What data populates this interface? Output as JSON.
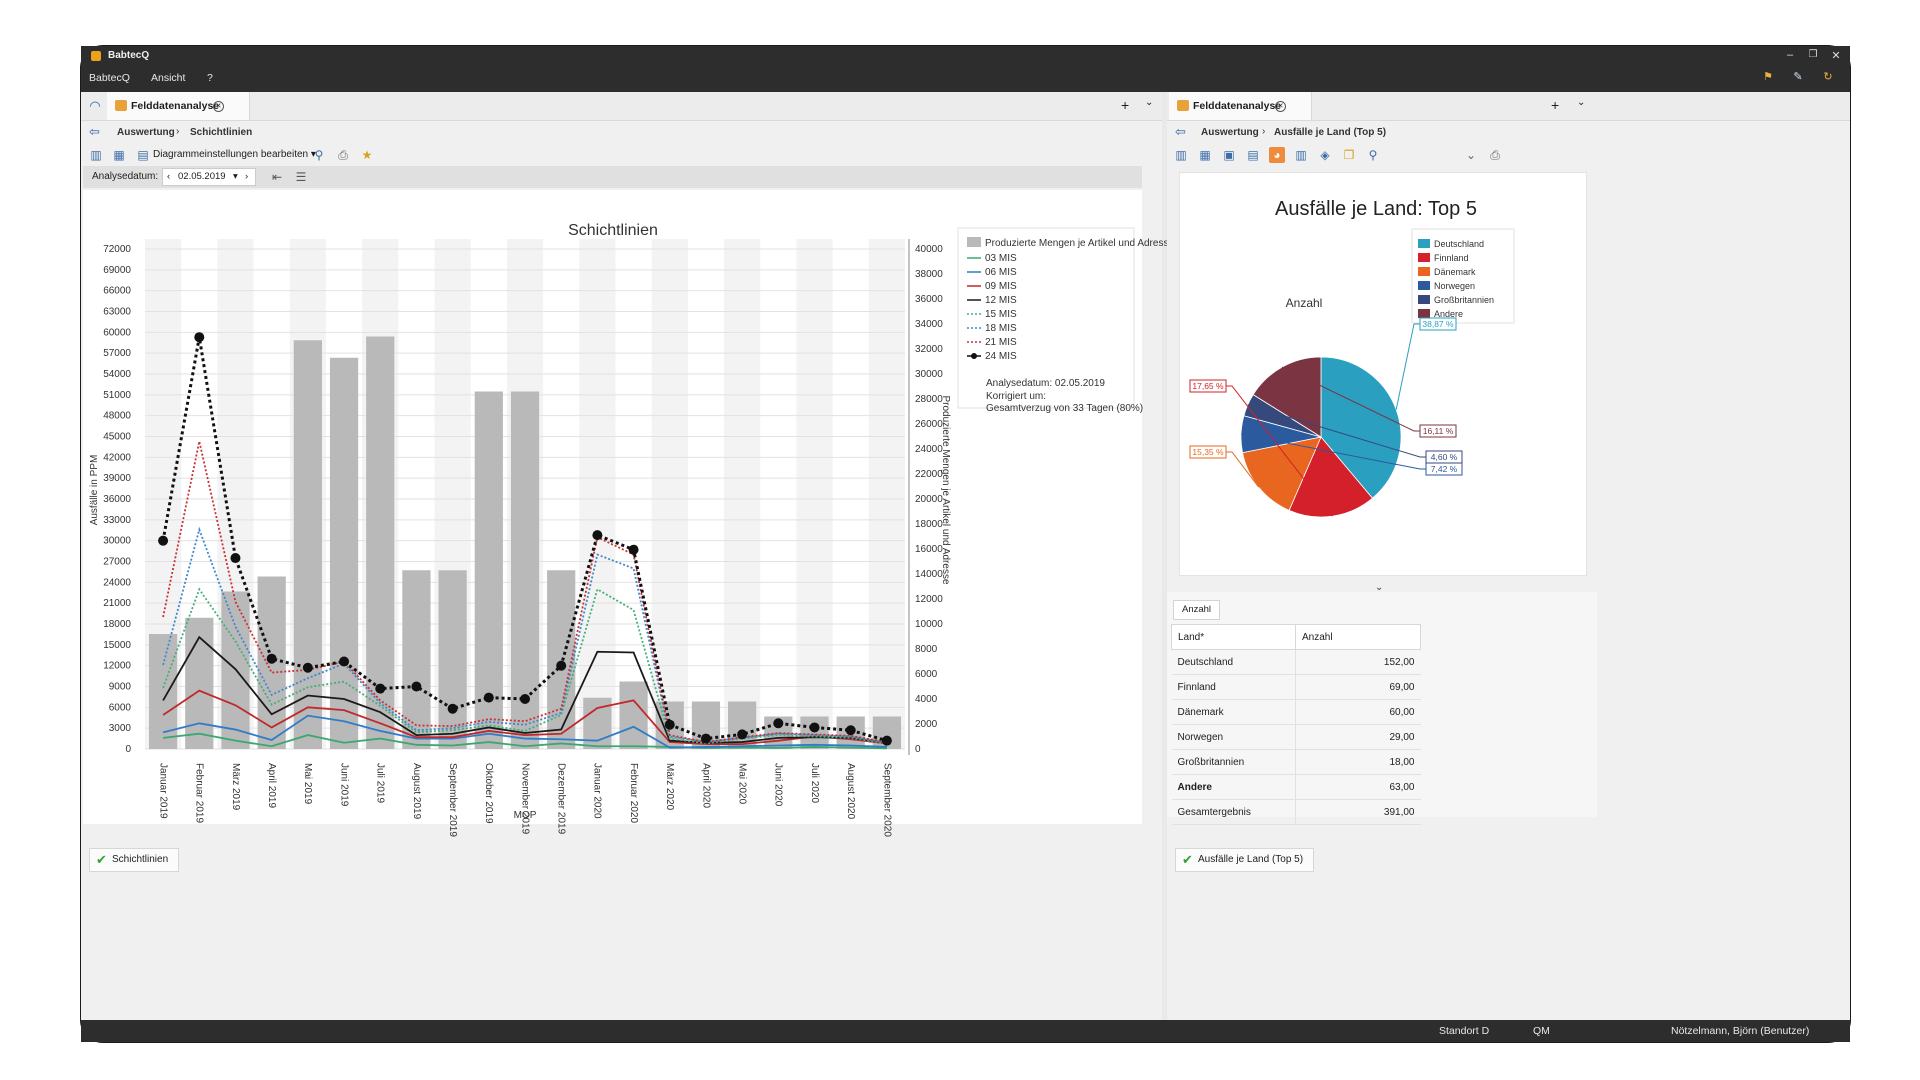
{
  "app": {
    "title": "BabtecQ",
    "menu": [
      "BabtecQ",
      "Ansicht",
      "?"
    ]
  },
  "left": {
    "tab_title": "Felddatenanalyse",
    "breadcrumb": [
      "Auswertung",
      "Schichtlinien"
    ],
    "toolbar_edit_label": "Diagrammeinstellungen bearbeiten",
    "analysis_label": "Analysedatum:",
    "analysis_date": "02.05.2019",
    "bottom_tab": "Schichtlinien"
  },
  "right": {
    "tab_title": "Felddatenanalyse",
    "breadcrumb": [
      "Auswertung",
      "Ausfälle je Land (Top 5)"
    ],
    "grid_caption": "Anzahl",
    "grid_headers": [
      "Land*",
      "Anzahl"
    ],
    "grid_rows": [
      {
        "land": "Deutschland",
        "anzahl": "152,00",
        "bold": false
      },
      {
        "land": "Finnland",
        "anzahl": "69,00",
        "bold": false
      },
      {
        "land": "Dänemark",
        "anzahl": "60,00",
        "bold": false
      },
      {
        "land": "Norwegen",
        "anzahl": "29,00",
        "bold": false
      },
      {
        "land": "Großbritannien",
        "anzahl": "18,00",
        "bold": false
      },
      {
        "land": "Andere",
        "anzahl": "63,00",
        "bold": true
      },
      {
        "land": "Gesamtergebnis",
        "anzahl": "391,00",
        "bold": false
      }
    ],
    "bottom_tab": "Ausfälle je Land (Top 5)"
  },
  "status": {
    "site": "Standort D",
    "area": "QM",
    "user": "Nötzelmann, Björn (Benutzer)"
  },
  "chart_data": [
    {
      "type": "bar",
      "title": "Schichtlinien",
      "xlabel": "MOP",
      "ylabel": "Ausfälle in PPM",
      "y2label": "Produzierte Mengen je Artikel und Adresse",
      "ylim": [
        0,
        72000
      ],
      "y2lim": [
        0,
        40000
      ],
      "yticks": [
        "72000",
        "69000",
        "66000",
        "63000",
        "60000",
        "57000",
        "54000",
        "51000",
        "48000",
        "45000",
        "42000",
        "39000",
        "36000",
        "33000",
        "30000",
        "27000",
        "24000",
        "21000",
        "18000",
        "15000",
        "12000",
        "9000",
        "6000",
        "3000",
        "0"
      ],
      "y2ticks": [
        "40000",
        "38000",
        "36000",
        "34000",
        "32000",
        "30000",
        "28000",
        "26000",
        "24000",
        "22000",
        "20000",
        "18000",
        "16000",
        "14000",
        "12000",
        "10000",
        "8000",
        "6000",
        "4000",
        "2000",
        "0"
      ],
      "categories": [
        "Januar 2019",
        "Februar 2019",
        "März 2019",
        "April 2019",
        "Mai 2019",
        "Juni 2019",
        "Juli 2019",
        "August 2019",
        "September 2019",
        "Oktober 2019",
        "November 2019",
        "Dezember 2019",
        "Januar 2020",
        "Februar 2020",
        "März 2020",
        "April 2020",
        "Mai 2020",
        "Juni 2020",
        "Juli 2020",
        "August 2020",
        "September 2020"
      ],
      "bars": {
        "name": "Produzierte Mengen je Artikel und Adresse",
        "axis": "y2",
        "color": "#b9b9b9",
        "values": [
          9200,
          10500,
          12600,
          13800,
          32700,
          31300,
          33000,
          14300,
          14300,
          28600,
          28600,
          14300,
          4100,
          5400,
          3800,
          3800,
          3800,
          2600,
          2600,
          2600,
          2600
        ]
      },
      "series": [
        {
          "name": "03 MIS",
          "color": "#3aa870",
          "style": "solid",
          "values": [
            1600,
            2200,
            1200,
            400,
            2000,
            900,
            1500,
            600,
            500,
            1000,
            400,
            800,
            400,
            400,
            300,
            150,
            200,
            150,
            300,
            200,
            100
          ]
        },
        {
          "name": "06 MIS",
          "color": "#2f7cc9",
          "style": "solid",
          "values": [
            2400,
            3700,
            2800,
            1300,
            4800,
            4000,
            2600,
            1500,
            1500,
            2200,
            1500,
            1400,
            1200,
            3200,
            200,
            300,
            400,
            500,
            600,
            500,
            300
          ]
        },
        {
          "name": "09 MIS",
          "color": "#c0282c",
          "style": "solid",
          "values": [
            4900,
            8400,
            6300,
            3100,
            6000,
            5600,
            3700,
            1700,
            1700,
            2600,
            2000,
            2200,
            5900,
            7000,
            1000,
            700,
            700,
            1200,
            1800,
            1400,
            800
          ]
        },
        {
          "name": "12 MIS",
          "color": "#1a1a1a",
          "style": "solid",
          "values": [
            7000,
            16100,
            11500,
            5000,
            7700,
            7200,
            5300,
            2000,
            2200,
            3100,
            2300,
            2800,
            14000,
            13900,
            1200,
            900,
            1000,
            1600,
            1700,
            1600,
            900
          ]
        },
        {
          "name": "15 MIS",
          "color": "#43b07a",
          "style": "dotted",
          "values": [
            8800,
            23000,
            15500,
            6400,
            8900,
            9700,
            6200,
            2400,
            2700,
            3400,
            2600,
            4900,
            23000,
            20000,
            1500,
            800,
            1500,
            2000,
            1800,
            1600,
            800
          ]
        },
        {
          "name": "18 MIS",
          "color": "#3d88cc",
          "style": "dotted",
          "values": [
            12100,
            31600,
            17600,
            7800,
            10200,
            12300,
            6600,
            2700,
            3000,
            3900,
            3500,
            5200,
            28000,
            26000,
            1800,
            1000,
            1600,
            2200,
            2000,
            1800,
            900
          ]
        },
        {
          "name": "21 MIS",
          "color": "#c83232",
          "style": "dotted",
          "values": [
            19000,
            44300,
            21200,
            11000,
            11400,
            12600,
            7000,
            3400,
            3300,
            4300,
            4000,
            5800,
            30500,
            28000,
            2000,
            1000,
            1700,
            2300,
            2100,
            1900,
            1000
          ]
        },
        {
          "name": "24 MIS",
          "color": "#111111",
          "style": "dotted-marker",
          "values": [
            30000,
            59300,
            27500,
            13000,
            11700,
            12600,
            8700,
            9000,
            5800,
            7400,
            7200,
            12000,
            30800,
            28700,
            3500,
            1500,
            2100,
            3700,
            3100,
            2700,
            1200
          ]
        }
      ],
      "legend_placement": "right",
      "notes": [
        "Analysedatum: 02.05.2019",
        "Korrigiert um:",
        "Gesamtverzug von 33 Tagen (80%)"
      ],
      "grid": true
    },
    {
      "type": "pie",
      "title": "Ausfälle je Land: Top 5",
      "subtitle": "Anzahl",
      "categories": [
        "Deutschland",
        "Finnland",
        "Dänemark",
        "Norwegen",
        "Großbritannien",
        "Andere"
      ],
      "values": [
        152,
        69,
        60,
        29,
        18,
        63
      ],
      "labels": [
        "38,87 %",
        "17,65 %",
        "15,35 %",
        "7,42 %",
        "4,60 %",
        "16,11 %"
      ],
      "colors": [
        "#2a9fc0",
        "#d3202a",
        "#e8661f",
        "#2b5a9f",
        "#36497c",
        "#7a3442"
      ],
      "legend_placement": "top-right"
    }
  ]
}
